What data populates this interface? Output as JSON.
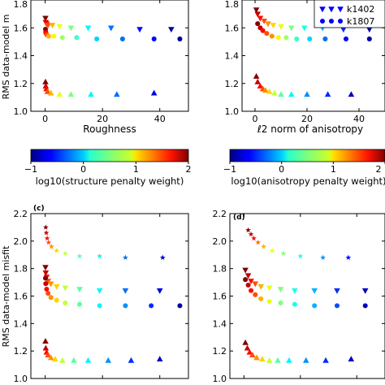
{
  "figure": {
    "common_ylabel_top": "RMS data-model misfit",
    "common_ylabel_bottom": "RMS data-model misfit"
  },
  "colorbars": [
    {
      "label": "log10(structure penalty weight)",
      "ticks": [
        "−1",
        "0",
        "1",
        "2"
      ],
      "min": -1,
      "max": 2
    },
    {
      "label": "log10(anisotropy penalty weight)",
      "ticks": [
        "−1",
        "0",
        "1",
        "2"
      ],
      "min": -1,
      "max": 2
    }
  ],
  "legend": {
    "entries": [
      {
        "label": "k1402",
        "marker": "triangle-down"
      },
      {
        "label": "k1807",
        "marker": "circle"
      }
    ]
  },
  "chart_data": [
    {
      "type": "scatter",
      "panel": "a",
      "panel_label": "",
      "xlabel": "Roughness",
      "ylabel": "RMS data-model m",
      "xlim": [
        -5,
        50
      ],
      "ylim": [
        1.0,
        1.8
      ],
      "xticks": [
        "0",
        "20",
        "40"
      ],
      "yticks": [
        "1.0",
        "1.2",
        "1.4",
        "1.6",
        "1.8"
      ],
      "series": [
        {
          "marker": "triangle-down",
          "points": [
            {
              "x": 0.1,
              "y": 1.67,
              "c": 2.0
            },
            {
              "x": 0.2,
              "y": 1.64,
              "c": 1.8
            },
            {
              "x": 0.5,
              "y": 1.63,
              "c": 1.6
            },
            {
              "x": 1.0,
              "y": 1.62,
              "c": 1.4
            },
            {
              "x": 2.5,
              "y": 1.62,
              "c": 1.1
            },
            {
              "x": 5,
              "y": 1.61,
              "c": 0.8
            },
            {
              "x": 9,
              "y": 1.6,
              "c": 0.5
            },
            {
              "x": 15,
              "y": 1.6,
              "c": 0.1
            },
            {
              "x": 23,
              "y": 1.6,
              "c": -0.3
            },
            {
              "x": 33,
              "y": 1.59,
              "c": -0.6
            },
            {
              "x": 44,
              "y": 1.59,
              "c": -0.9
            }
          ]
        },
        {
          "marker": "circle",
          "points": [
            {
              "x": 0.1,
              "y": 1.59,
              "c": 2.0
            },
            {
              "x": 0.2,
              "y": 1.57,
              "c": 1.8
            },
            {
              "x": 0.3,
              "y": 1.56,
              "c": 1.6
            },
            {
              "x": 0.6,
              "y": 1.55,
              "c": 1.4
            },
            {
              "x": 1.2,
              "y": 1.54,
              "c": 1.1
            },
            {
              "x": 3,
              "y": 1.54,
              "c": 0.9
            },
            {
              "x": 6,
              "y": 1.53,
              "c": 0.6
            },
            {
              "x": 11,
              "y": 1.53,
              "c": 0.3
            },
            {
              "x": 18,
              "y": 1.52,
              "c": 0.0
            },
            {
              "x": 27,
              "y": 1.52,
              "c": -0.3
            },
            {
              "x": 38,
              "y": 1.52,
              "c": -0.6
            },
            {
              "x": 47,
              "y": 1.52,
              "c": -0.9
            }
          ]
        },
        {
          "marker": "triangle",
          "points": [
            {
              "x": 0.1,
              "y": 1.21,
              "c": 2.0
            },
            {
              "x": 0.2,
              "y": 1.18,
              "c": 1.8
            },
            {
              "x": 0.4,
              "y": 1.16,
              "c": 1.6
            },
            {
              "x": 0.8,
              "y": 1.14,
              "c": 1.4
            },
            {
              "x": 2,
              "y": 1.13,
              "c": 1.1
            },
            {
              "x": 5,
              "y": 1.12,
              "c": 0.8
            },
            {
              "x": 9,
              "y": 1.12,
              "c": 0.5
            },
            {
              "x": 16,
              "y": 1.12,
              "c": 0.1
            },
            {
              "x": 25,
              "y": 1.12,
              "c": -0.3
            },
            {
              "x": 38,
              "y": 1.13,
              "c": -0.7
            }
          ]
        }
      ]
    },
    {
      "type": "scatter",
      "panel": "b",
      "panel_label": "",
      "xlabel": "ℓ2 norm of anisotropy",
      "ylabel": "",
      "xlim": [
        -5,
        50
      ],
      "ylim": [
        1.0,
        1.8
      ],
      "xticks": [
        "0",
        "20",
        "40"
      ],
      "yticks": [
        "1.0",
        "1.2",
        "1.4",
        "1.6",
        "1.8"
      ],
      "series": [
        {
          "marker": "triangle-down",
          "points": [
            {
              "x": 0.5,
              "y": 1.73,
              "c": 2.0
            },
            {
              "x": 1,
              "y": 1.7,
              "c": 1.8
            },
            {
              "x": 2,
              "y": 1.67,
              "c": 1.6
            },
            {
              "x": 3.5,
              "y": 1.65,
              "c": 1.4
            },
            {
              "x": 5,
              "y": 1.63,
              "c": 1.2
            },
            {
              "x": 7,
              "y": 1.62,
              "c": 1.0
            },
            {
              "x": 10,
              "y": 1.61,
              "c": 0.8
            },
            {
              "x": 14,
              "y": 1.6,
              "c": 0.5
            },
            {
              "x": 19,
              "y": 1.6,
              "c": 0.2
            },
            {
              "x": 26,
              "y": 1.6,
              "c": -0.1
            },
            {
              "x": 34,
              "y": 1.59,
              "c": -0.5
            },
            {
              "x": 44,
              "y": 1.59,
              "c": -0.9
            }
          ]
        },
        {
          "marker": "circle",
          "points": [
            {
              "x": 1,
              "y": 1.63,
              "c": 2.0
            },
            {
              "x": 2,
              "y": 1.6,
              "c": 1.8
            },
            {
              "x": 3,
              "y": 1.58,
              "c": 1.6
            },
            {
              "x": 4.5,
              "y": 1.56,
              "c": 1.4
            },
            {
              "x": 6.5,
              "y": 1.54,
              "c": 1.2
            },
            {
              "x": 9,
              "y": 1.53,
              "c": 0.9
            },
            {
              "x": 12,
              "y": 1.53,
              "c": 0.6
            },
            {
              "x": 16,
              "y": 1.52,
              "c": 0.3
            },
            {
              "x": 21,
              "y": 1.52,
              "c": 0.0
            },
            {
              "x": 27,
              "y": 1.52,
              "c": -0.3
            },
            {
              "x": 35,
              "y": 1.52,
              "c": -0.6
            },
            {
              "x": 44,
              "y": 1.52,
              "c": -0.9
            }
          ]
        },
        {
          "marker": "triangle",
          "points": [
            {
              "x": 0.5,
              "y": 1.25,
              "c": 2.0
            },
            {
              "x": 1,
              "y": 1.21,
              "c": 1.8
            },
            {
              "x": 2,
              "y": 1.18,
              "c": 1.6
            },
            {
              "x": 3,
              "y": 1.16,
              "c": 1.4
            },
            {
              "x": 4,
              "y": 1.15,
              "c": 1.2
            },
            {
              "x": 5.5,
              "y": 1.14,
              "c": 1.0
            },
            {
              "x": 7.5,
              "y": 1.13,
              "c": 0.7
            },
            {
              "x": 10,
              "y": 1.12,
              "c": 0.4
            },
            {
              "x": 14,
              "y": 1.12,
              "c": 0.1
            },
            {
              "x": 20,
              "y": 1.12,
              "c": -0.2
            },
            {
              "x": 28,
              "y": 1.12,
              "c": -0.5
            },
            {
              "x": 37,
              "y": 1.12,
              "c": -0.8
            }
          ]
        }
      ]
    },
    {
      "type": "scatter",
      "panel": "c",
      "panel_label": "(c)",
      "xlabel": "",
      "ylabel": "RMS data-model misfit",
      "xlim": [
        -5,
        50
      ],
      "ylim": [
        1.0,
        2.2
      ],
      "xticks": [
        "0",
        "20",
        "40"
      ],
      "yticks": [
        "1.0",
        "1.2",
        "1.4",
        "1.6",
        "1.8",
        "2.0",
        "2.2"
      ],
      "series": [
        {
          "marker": "star",
          "points": [
            {
              "x": 0.2,
              "y": 2.1,
              "c": 2.0
            },
            {
              "x": 0.4,
              "y": 2.06,
              "c": 1.8
            },
            {
              "x": 0.7,
              "y": 2.02,
              "c": 1.6
            },
            {
              "x": 1.2,
              "y": 1.99,
              "c": 1.4
            },
            {
              "x": 2.2,
              "y": 1.96,
              "c": 1.2
            },
            {
              "x": 4,
              "y": 1.93,
              "c": 1.0
            },
            {
              "x": 7,
              "y": 1.91,
              "c": 0.7
            },
            {
              "x": 12,
              "y": 1.89,
              "c": 0.4
            },
            {
              "x": 19,
              "y": 1.89,
              "c": 0.1
            },
            {
              "x": 28,
              "y": 1.88,
              "c": -0.3
            },
            {
              "x": 41,
              "y": 1.88,
              "c": -0.8
            }
          ]
        },
        {
          "marker": "triangle-down",
          "points": [
            {
              "x": 0.1,
              "y": 1.81,
              "c": 2.0
            },
            {
              "x": 0.2,
              "y": 1.77,
              "c": 1.8
            },
            {
              "x": 0.5,
              "y": 1.74,
              "c": 1.6
            },
            {
              "x": 1,
              "y": 1.71,
              "c": 1.4
            },
            {
              "x": 2,
              "y": 1.69,
              "c": 1.2
            },
            {
              "x": 4,
              "y": 1.67,
              "c": 1.0
            },
            {
              "x": 7,
              "y": 1.66,
              "c": 0.7
            },
            {
              "x": 12,
              "y": 1.65,
              "c": 0.4
            },
            {
              "x": 19,
              "y": 1.64,
              "c": 0.1
            },
            {
              "x": 28,
              "y": 1.64,
              "c": -0.3
            },
            {
              "x": 40,
              "y": 1.64,
              "c": -0.7
            }
          ]
        },
        {
          "marker": "circle",
          "points": [
            {
              "x": 0.1,
              "y": 1.73,
              "c": 2.0
            },
            {
              "x": 0.2,
              "y": 1.69,
              "c": 1.8
            },
            {
              "x": 0.5,
              "y": 1.65,
              "c": 1.6
            },
            {
              "x": 1,
              "y": 1.62,
              "c": 1.4
            },
            {
              "x": 2,
              "y": 1.59,
              "c": 1.2
            },
            {
              "x": 4,
              "y": 1.57,
              "c": 1.0
            },
            {
              "x": 7,
              "y": 1.55,
              "c": 0.7
            },
            {
              "x": 12,
              "y": 1.54,
              "c": 0.4
            },
            {
              "x": 19,
              "y": 1.53,
              "c": 0.1
            },
            {
              "x": 28,
              "y": 1.53,
              "c": -0.2
            },
            {
              "x": 37,
              "y": 1.53,
              "c": -0.5
            },
            {
              "x": 47,
              "y": 1.53,
              "c": -0.9
            }
          ]
        },
        {
          "marker": "triangle",
          "points": [
            {
              "x": 0.1,
              "y": 1.27,
              "c": 2.0
            },
            {
              "x": 0.2,
              "y": 1.22,
              "c": 1.8
            },
            {
              "x": 0.5,
              "y": 1.19,
              "c": 1.6
            },
            {
              "x": 1,
              "y": 1.17,
              "c": 1.4
            },
            {
              "x": 2,
              "y": 1.15,
              "c": 1.2
            },
            {
              "x": 3.5,
              "y": 1.14,
              "c": 1.0
            },
            {
              "x": 6,
              "y": 1.13,
              "c": 0.7
            },
            {
              "x": 10,
              "y": 1.13,
              "c": 0.4
            },
            {
              "x": 15,
              "y": 1.13,
              "c": 0.1
            },
            {
              "x": 22,
              "y": 1.13,
              "c": -0.2
            },
            {
              "x": 30,
              "y": 1.13,
              "c": -0.5
            },
            {
              "x": 40,
              "y": 1.14,
              "c": -0.8
            }
          ]
        }
      ]
    },
    {
      "type": "scatter",
      "panel": "d",
      "panel_label": "(d)",
      "xlabel": "",
      "ylabel": "",
      "xlim": [
        -5,
        50
      ],
      "ylim": [
        1.0,
        2.2
      ],
      "xticks": [
        "0",
        "20",
        "40"
      ],
      "yticks": [
        "1.0",
        "1.2",
        "1.4",
        "1.6",
        "1.8",
        "2.0",
        "2.2"
      ],
      "series": [
        {
          "marker": "star",
          "points": [
            {
              "x": 1.5,
              "y": 2.08,
              "c": 2.0
            },
            {
              "x": 2.5,
              "y": 2.05,
              "c": 1.8
            },
            {
              "x": 3.5,
              "y": 2.02,
              "c": 1.6
            },
            {
              "x": 5,
              "y": 1.99,
              "c": 1.3
            },
            {
              "x": 7,
              "y": 1.96,
              "c": 1.1
            },
            {
              "x": 10,
              "y": 1.93,
              "c": 0.8
            },
            {
              "x": 14,
              "y": 1.91,
              "c": 0.5
            },
            {
              "x": 20,
              "y": 1.89,
              "c": 0.2
            },
            {
              "x": 28,
              "y": 1.88,
              "c": -0.2
            },
            {
              "x": 37,
              "y": 1.88,
              "c": -0.6
            }
          ]
        },
        {
          "marker": "triangle-down",
          "points": [
            {
              "x": 0.5,
              "y": 1.79,
              "c": 2.0
            },
            {
              "x": 1.5,
              "y": 1.75,
              "c": 1.8
            },
            {
              "x": 2.5,
              "y": 1.71,
              "c": 1.6
            },
            {
              "x": 4,
              "y": 1.69,
              "c": 1.4
            },
            {
              "x": 6,
              "y": 1.67,
              "c": 1.1
            },
            {
              "x": 9,
              "y": 1.66,
              "c": 0.8
            },
            {
              "x": 13,
              "y": 1.65,
              "c": 0.5
            },
            {
              "x": 18,
              "y": 1.64,
              "c": 0.2
            },
            {
              "x": 25,
              "y": 1.64,
              "c": -0.1
            },
            {
              "x": 33,
              "y": 1.64,
              "c": -0.5
            },
            {
              "x": 43,
              "y": 1.64,
              "c": -0.8
            }
          ]
        },
        {
          "marker": "circle",
          "points": [
            {
              "x": 0.5,
              "y": 1.72,
              "c": 2.0
            },
            {
              "x": 1.5,
              "y": 1.68,
              "c": 1.8
            },
            {
              "x": 2.5,
              "y": 1.64,
              "c": 1.6
            },
            {
              "x": 4,
              "y": 1.61,
              "c": 1.4
            },
            {
              "x": 6,
              "y": 1.58,
              "c": 1.1
            },
            {
              "x": 9,
              "y": 1.56,
              "c": 0.8
            },
            {
              "x": 13,
              "y": 1.55,
              "c": 0.5
            },
            {
              "x": 18,
              "y": 1.54,
              "c": 0.2
            },
            {
              "x": 25,
              "y": 1.53,
              "c": -0.1
            },
            {
              "x": 33,
              "y": 1.53,
              "c": -0.4
            },
            {
              "x": 43,
              "y": 1.53,
              "c": -0.8
            }
          ]
        },
        {
          "marker": "triangle",
          "points": [
            {
              "x": 0.5,
              "y": 1.26,
              "c": 2.0
            },
            {
              "x": 1.2,
              "y": 1.22,
              "c": 1.8
            },
            {
              "x": 2,
              "y": 1.19,
              "c": 1.6
            },
            {
              "x": 3,
              "y": 1.17,
              "c": 1.4
            },
            {
              "x": 4.5,
              "y": 1.15,
              "c": 1.2
            },
            {
              "x": 6.5,
              "y": 1.14,
              "c": 1.0
            },
            {
              "x": 9,
              "y": 1.13,
              "c": 0.7
            },
            {
              "x": 12,
              "y": 1.13,
              "c": 0.4
            },
            {
              "x": 16,
              "y": 1.13,
              "c": 0.1
            },
            {
              "x": 22,
              "y": 1.13,
              "c": -0.2
            },
            {
              "x": 29,
              "y": 1.13,
              "c": -0.5
            },
            {
              "x": 38,
              "y": 1.14,
              "c": -0.8
            }
          ]
        }
      ]
    }
  ]
}
